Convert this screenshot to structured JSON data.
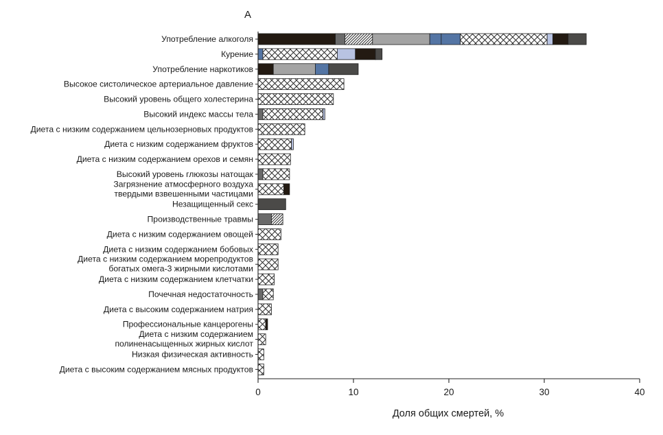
{
  "chart_data": {
    "type": "bar",
    "orientation": "horizontal",
    "stacked": true,
    "panel_label": "А",
    "xlabel": "Доля общих смертей, %",
    "xlim": [
      0,
      40
    ],
    "xticks": [
      "0",
      "10",
      "20",
      "30",
      "40"
    ],
    "grid": false,
    "colors": {
      "black": "#231a12",
      "darkgray": "#4b4a48",
      "midgray": "#6a6a6a",
      "lightgray": "#a3a3a3",
      "blue": "#5475a4",
      "lightblue": "#b8c3e2",
      "crosshatch_fill": "#ffffff",
      "crosshatch_line": "#2b2b2b",
      "diagonal_line": "#333333"
    },
    "categories": [
      {
        "label": [
          "Употребление алкоголя"
        ],
        "segments": [
          {
            "c": "black",
            "v": 8.1
          },
          {
            "c": "midgray",
            "v": 1.0
          },
          {
            "c": "diag",
            "v": 2.9
          },
          {
            "c": "lightgray",
            "v": 6.0
          },
          {
            "c": "blue",
            "v": 1.2
          },
          {
            "c": "blue",
            "v": 2.0
          },
          {
            "c": "cross",
            "v": 9.1
          },
          {
            "c": "lightblue",
            "v": 0.6
          },
          {
            "c": "black",
            "v": 1.6
          },
          {
            "c": "darkgray",
            "v": 1.9
          }
        ]
      },
      {
        "label": [
          "Курение"
        ],
        "segments": [
          {
            "c": "blue",
            "v": 0.5
          },
          {
            "c": "cross",
            "v": 7.8
          },
          {
            "c": "lightblue",
            "v": 1.9
          },
          {
            "c": "black",
            "v": 2.1
          },
          {
            "c": "darkgray",
            "v": 0.7
          }
        ]
      },
      {
        "label": [
          "Употребление наркотиков"
        ],
        "segments": [
          {
            "c": "black",
            "v": 1.6
          },
          {
            "c": "lightgray",
            "v": 4.4
          },
          {
            "c": "blue",
            "v": 1.4
          },
          {
            "c": "darkgray",
            "v": 3.1
          }
        ]
      },
      {
        "label": [
          "Высокое систолическое артериальное давление"
        ],
        "segments": [
          {
            "c": "cross",
            "v": 9.0
          }
        ]
      },
      {
        "label": [
          "Высокий уровень общего холестерина"
        ],
        "segments": [
          {
            "c": "cross",
            "v": 7.9
          }
        ]
      },
      {
        "label": [
          "Высокий индекс массы тела"
        ],
        "segments": [
          {
            "c": "midgray",
            "v": 0.5
          },
          {
            "c": "cross",
            "v": 6.3
          },
          {
            "c": "lightblue",
            "v": 0.2
          }
        ]
      },
      {
        "label": [
          "Диета с низким содержанием цельнозерновых продуктов"
        ],
        "segments": [
          {
            "c": "cross",
            "v": 4.9
          }
        ]
      },
      {
        "label": [
          "Диета с низким содержанием фруктов"
        ],
        "segments": [
          {
            "c": "cross",
            "v": 3.5
          },
          {
            "c": "lightblue",
            "v": 0.2
          }
        ]
      },
      {
        "label": [
          "Диета с низким содержанием орехов и семян"
        ],
        "segments": [
          {
            "c": "cross",
            "v": 3.4
          }
        ]
      },
      {
        "label": [
          "Высокий уровень глюкозы натощак"
        ],
        "segments": [
          {
            "c": "midgray",
            "v": 0.5
          },
          {
            "c": "cross",
            "v": 2.8
          }
        ]
      },
      {
        "label": [
          "Загрязнение атмосферного воздуха",
          "твердыми взвешенными частицами"
        ],
        "segments": [
          {
            "c": "cross",
            "v": 2.7
          },
          {
            "c": "black",
            "v": 0.6
          }
        ]
      },
      {
        "label": [
          "Незащищенный секс"
        ],
        "segments": [
          {
            "c": "darkgray",
            "v": 2.9
          }
        ]
      },
      {
        "label": [
          "Производственные травмы"
        ],
        "segments": [
          {
            "c": "midgray",
            "v": 1.4
          },
          {
            "c": "diag",
            "v": 1.2
          }
        ]
      },
      {
        "label": [
          "Диета с низким содержанием овощей"
        ],
        "segments": [
          {
            "c": "cross",
            "v": 2.4
          }
        ]
      },
      {
        "label": [
          "Диета с низким содержанием бобовых"
        ],
        "segments": [
          {
            "c": "cross",
            "v": 2.1
          }
        ]
      },
      {
        "label": [
          "Диета с низким содержанием морепродуктов",
          "богатых омега-3 жирными кислотами"
        ],
        "segments": [
          {
            "c": "cross",
            "v": 2.1
          }
        ]
      },
      {
        "label": [
          "Диета с низким содержанием клетчатки"
        ],
        "segments": [
          {
            "c": "cross",
            "v": 1.7
          }
        ]
      },
      {
        "label": [
          "Почечная недостаточность"
        ],
        "segments": [
          {
            "c": "midgray",
            "v": 0.5
          },
          {
            "c": "cross",
            "v": 1.1
          }
        ]
      },
      {
        "label": [
          "Диета с высоким содержанием натрия"
        ],
        "segments": [
          {
            "c": "cross",
            "v": 1.4
          }
        ]
      },
      {
        "label": [
          "Профессиональные канцерогены"
        ],
        "segments": [
          {
            "c": "cross",
            "v": 0.8
          },
          {
            "c": "black",
            "v": 0.2
          }
        ]
      },
      {
        "label": [
          "Диета с низким содержанием",
          "полиненасыщенных жирных кислот"
        ],
        "segments": [
          {
            "c": "cross",
            "v": 0.8
          }
        ]
      },
      {
        "label": [
          "Низкая физическая активность"
        ],
        "segments": [
          {
            "c": "cross",
            "v": 0.6
          }
        ]
      },
      {
        "label": [
          "Диета с высоким содержанием мясных продуктов"
        ],
        "segments": [
          {
            "c": "cross",
            "v": 0.6
          }
        ]
      }
    ]
  }
}
